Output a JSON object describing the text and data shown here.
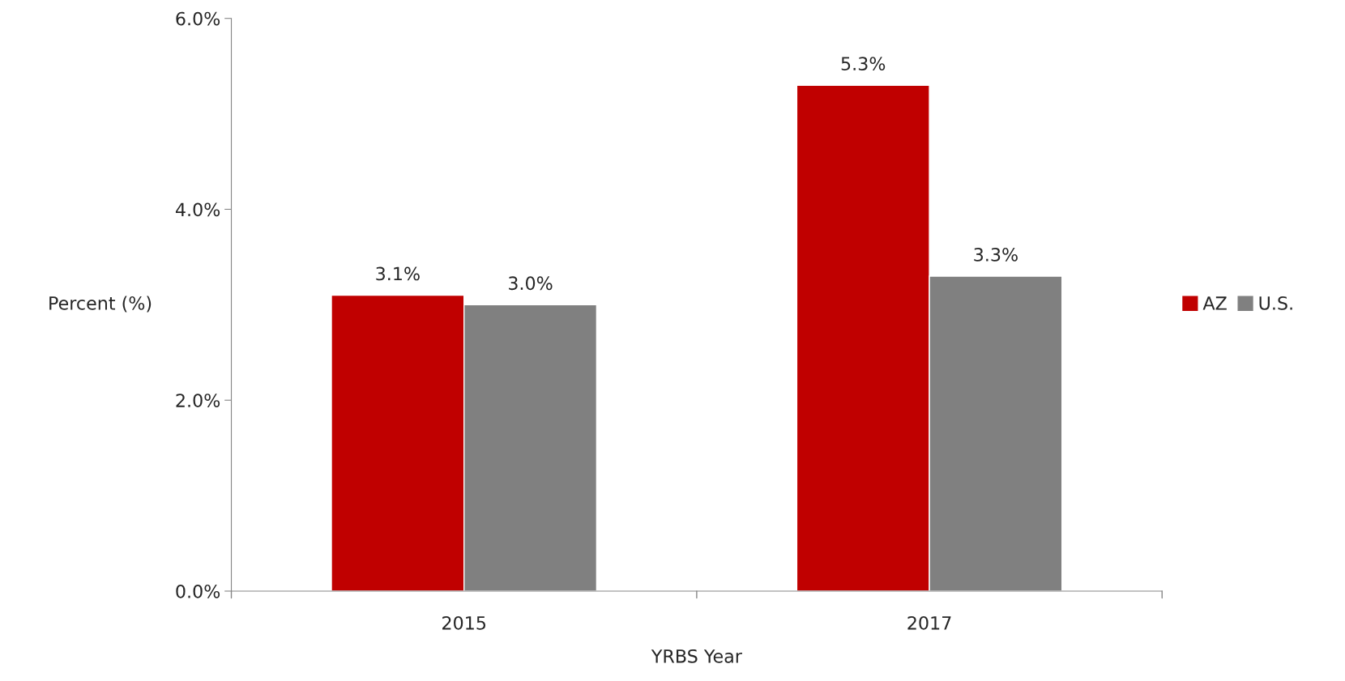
{
  "chart_data": {
    "type": "bar",
    "xlabel": "YRBS Year",
    "ylabel": "Percent (%)",
    "categories": [
      "2015",
      "2017"
    ],
    "series": [
      {
        "name": "AZ",
        "color": "#c00000",
        "values": [
          3.1,
          5.3
        ],
        "value_labels": [
          "3.1%",
          "5.3%"
        ]
      },
      {
        "name": "U.S.",
        "color": "#808080",
        "values": [
          3.0,
          3.3
        ],
        "value_labels": [
          "3.0%",
          "3.3%"
        ]
      }
    ],
    "ylim": [
      0,
      6
    ],
    "yticks": [
      {
        "value": 0,
        "label": "0.0%"
      },
      {
        "value": 2,
        "label": "2.0%"
      },
      {
        "value": 4,
        "label": "4.0%"
      },
      {
        "value": 6,
        "label": "6.0%"
      }
    ],
    "grid": false,
    "legend": "right"
  }
}
